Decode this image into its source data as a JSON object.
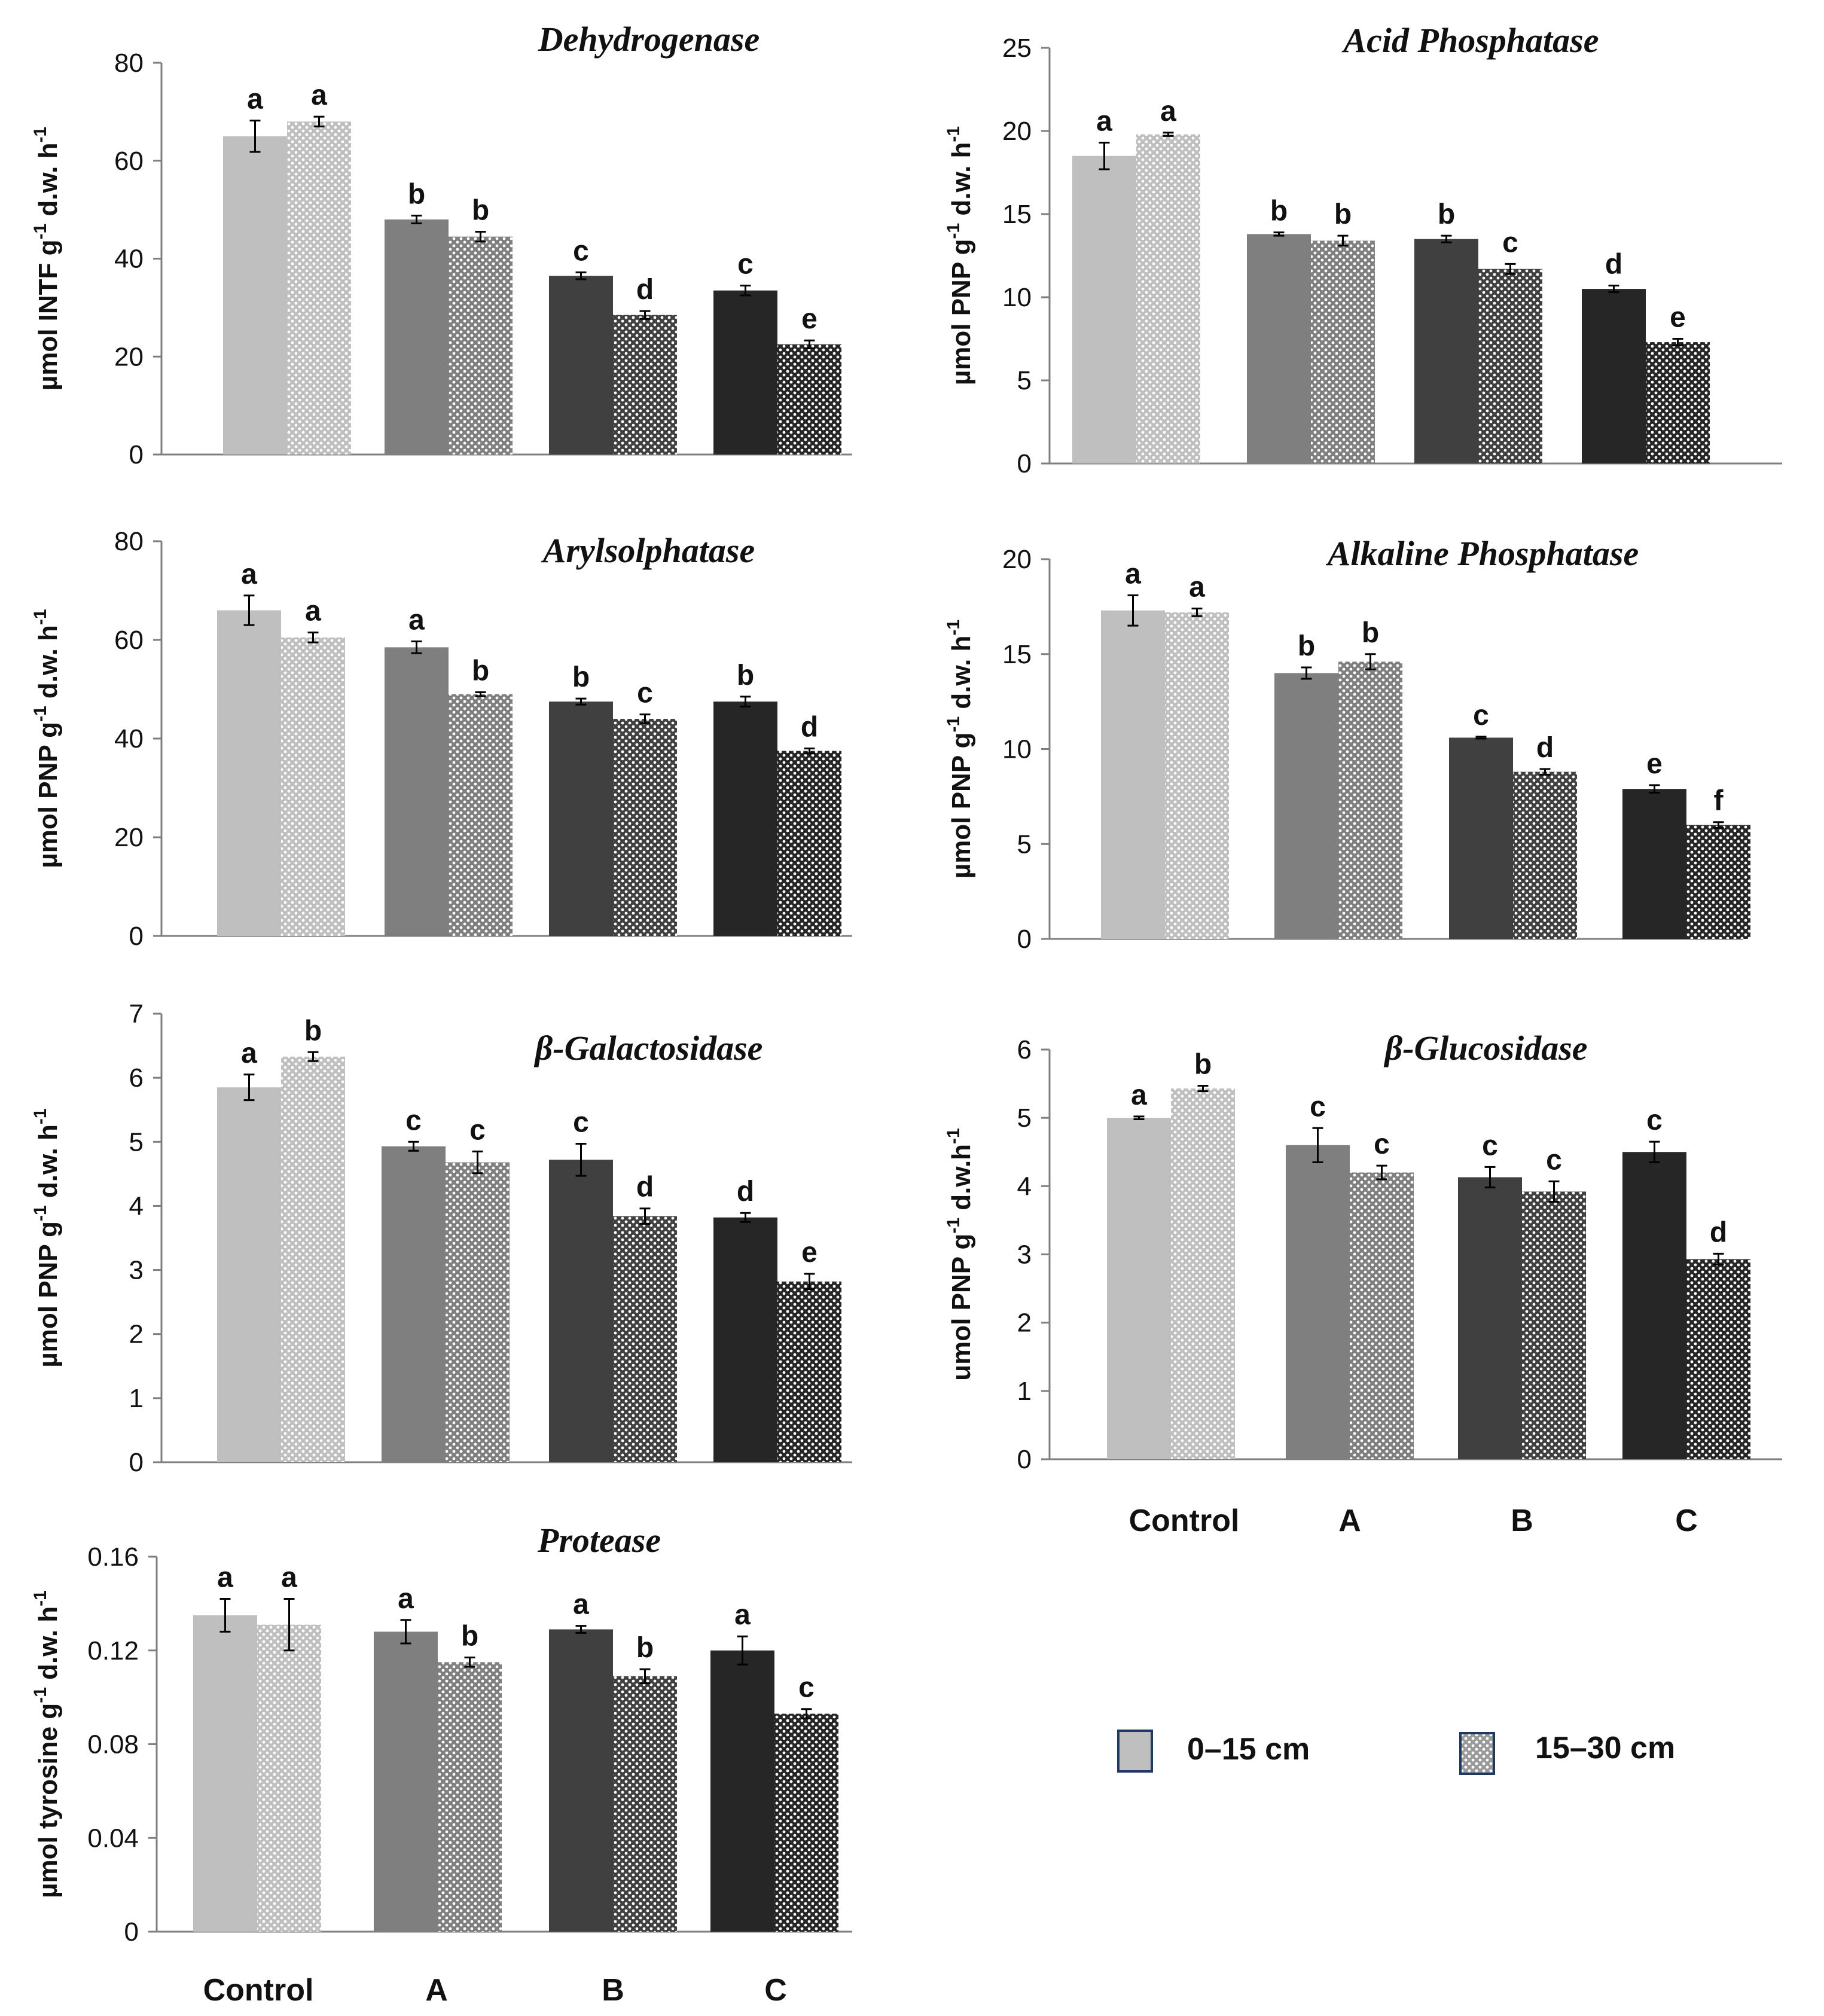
{
  "legend": {
    "items": [
      {
        "label": "0–15 cm",
        "pattern": "solid"
      },
      {
        "label": "15–30 cm",
        "pattern": "dots"
      }
    ]
  },
  "shared_x_labels": {
    "right_column": [
      "Control",
      "A",
      "B",
      "C"
    ],
    "bottom_left": [
      "Control",
      "A",
      "B",
      "C"
    ]
  },
  "colors": {
    "control": "#bfbfbf",
    "A": "#7f7f7f",
    "B": "#404040",
    "C": "#262626",
    "dot": "#ffffff",
    "axis": "#7f7f7f"
  },
  "chart_data": [
    {
      "id": "dehydrogenase",
      "type": "bar",
      "title": "Dehydrogenase",
      "ylabel_main": "µmol INTF g",
      "ylabel_sup1": "-1",
      "ylabel_mid": " d.w. h",
      "ylabel_sup2": "-1",
      "categories": [
        "Control",
        "A",
        "B",
        "C"
      ],
      "ylim": [
        0,
        80
      ],
      "yticks": [
        0,
        20,
        40,
        60,
        80
      ],
      "ytick_labels": [
        "0",
        "20",
        "40",
        "60",
        "80"
      ],
      "series": [
        {
          "name": "0–15 cm",
          "values": [
            65,
            48,
            36.5,
            33.5
          ],
          "errors": [
            3.2,
            0.8,
            0.7,
            1.0
          ],
          "letters": [
            "a",
            "b",
            "c",
            "c"
          ]
        },
        {
          "name": "15–30 cm",
          "values": [
            68,
            44.5,
            28.5,
            22.5
          ],
          "errors": [
            1.0,
            1.0,
            0.8,
            0.8
          ],
          "letters": [
            "a",
            "b",
            "d",
            "e"
          ]
        }
      ]
    },
    {
      "id": "acid-phosphatase",
      "type": "bar",
      "title": "Acid Phosphatase",
      "ylabel_main": "µmol PNP g",
      "ylabel_sup1": "-1",
      "ylabel_mid": " d.w. h",
      "ylabel_sup2": "-1",
      "categories": [
        "Control",
        "A",
        "B",
        "C"
      ],
      "ylim": [
        0,
        25
      ],
      "yticks": [
        0,
        5,
        10,
        15,
        20,
        25
      ],
      "ytick_labels": [
        "0",
        "5",
        "10",
        "15",
        "20",
        "25"
      ],
      "series": [
        {
          "name": "0–15 cm",
          "values": [
            18.5,
            13.8,
            13.5,
            10.5
          ],
          "errors": [
            0.8,
            0.1,
            0.2,
            0.2
          ],
          "letters": [
            "a",
            "b",
            "b",
            "d"
          ]
        },
        {
          "name": "15–30 cm",
          "values": [
            19.8,
            13.4,
            11.7,
            7.3
          ],
          "errors": [
            0.1,
            0.3,
            0.3,
            0.2
          ],
          "letters": [
            "a",
            "b",
            "c",
            "e"
          ]
        }
      ]
    },
    {
      "id": "arylsolphatase",
      "type": "bar",
      "title": "Arylsolphatase",
      "ylabel_main": "µmol PNP g",
      "ylabel_sup1": "-1",
      "ylabel_mid": " d.w. h",
      "ylabel_sup2": "-1",
      "categories": [
        "Control",
        "A",
        "B",
        "C"
      ],
      "ylim": [
        0,
        80
      ],
      "yticks": [
        0,
        20,
        40,
        60,
        80
      ],
      "ytick_labels": [
        "0",
        "20",
        "40",
        "60",
        "80"
      ],
      "series": [
        {
          "name": "0–15 cm",
          "values": [
            66,
            58.5,
            47.5,
            47.5
          ],
          "errors": [
            3.0,
            1.2,
            0.6,
            1.0
          ],
          "letters": [
            "a",
            "a",
            "b",
            "b"
          ]
        },
        {
          "name": "15–30 cm",
          "values": [
            60.5,
            49,
            44,
            37.5
          ],
          "errors": [
            1.0,
            0.4,
            0.9,
            0.5
          ],
          "letters": [
            "a",
            "b",
            "c",
            "d"
          ]
        }
      ]
    },
    {
      "id": "alkaline-phosphatase",
      "type": "bar",
      "title": "Alkaline Phosphatase",
      "ylabel_main": "µmol PNP g",
      "ylabel_sup1": "-1",
      "ylabel_mid": " d.w. h",
      "ylabel_sup2": "-1",
      "categories": [
        "Control",
        "A",
        "B",
        "C"
      ],
      "ylim": [
        0,
        20
      ],
      "yticks": [
        0,
        5,
        10,
        15,
        20
      ],
      "ytick_labels": [
        "0",
        "5",
        "10",
        "15",
        "20"
      ],
      "series": [
        {
          "name": "0–15 cm",
          "values": [
            17.3,
            14,
            10.6,
            7.9
          ],
          "errors": [
            0.8,
            0.3,
            0.05,
            0.2
          ],
          "letters": [
            "a",
            "b",
            "c",
            "e"
          ]
        },
        {
          "name": "15–30 cm",
          "values": [
            17.2,
            14.6,
            8.8,
            6.0
          ],
          "errors": [
            0.2,
            0.4,
            0.15,
            0.15
          ],
          "letters": [
            "a",
            "b",
            "d",
            "f"
          ]
        }
      ]
    },
    {
      "id": "beta-galactosidase",
      "type": "bar",
      "title": "β-Galactosidase",
      "ylabel_main": "µmol PNP g",
      "ylabel_sup1": "-1",
      "ylabel_mid": " d.w. h",
      "ylabel_sup2": "-1",
      "categories": [
        "Control",
        "A",
        "B",
        "C"
      ],
      "ylim": [
        0,
        7
      ],
      "yticks": [
        0,
        1,
        2,
        3,
        4,
        5,
        6,
        7
      ],
      "ytick_labels": [
        "0",
        "1",
        "2",
        "3",
        "4",
        "5",
        "6",
        "7"
      ],
      "series": [
        {
          "name": "0–15 cm",
          "values": [
            5.85,
            4.93,
            4.72,
            3.82
          ],
          "errors": [
            0.2,
            0.07,
            0.25,
            0.07
          ],
          "letters": [
            "a",
            "c",
            "c",
            "d"
          ]
        },
        {
          "name": "15–30 cm",
          "values": [
            6.33,
            4.68,
            3.84,
            2.82
          ],
          "errors": [
            0.07,
            0.17,
            0.12,
            0.12
          ],
          "letters": [
            "b",
            "c",
            "d",
            "e"
          ]
        }
      ]
    },
    {
      "id": "beta-glucosidase",
      "type": "bar",
      "title": "β-Glucosidase",
      "ylabel_main": "umol PNP g",
      "ylabel_sup1": "-1",
      "ylabel_mid": " d.w.h",
      "ylabel_sup2": "-1",
      "categories": [
        "Control",
        "A",
        "B",
        "C"
      ],
      "ylim": [
        0,
        6
      ],
      "yticks": [
        0,
        1,
        2,
        3,
        4,
        5,
        6
      ],
      "ytick_labels": [
        "0",
        "1",
        "2",
        "3",
        "4",
        "5",
        "6"
      ],
      "series": [
        {
          "name": "0–15 cm",
          "values": [
            5.0,
            4.6,
            4.13,
            4.5
          ],
          "errors": [
            0.02,
            0.25,
            0.15,
            0.15
          ],
          "letters": [
            "a",
            "c",
            "c",
            "c"
          ]
        },
        {
          "name": "15–30 cm",
          "values": [
            5.43,
            4.2,
            3.92,
            2.93
          ],
          "errors": [
            0.04,
            0.1,
            0.15,
            0.08
          ],
          "letters": [
            "b",
            "c",
            "c",
            "d"
          ]
        }
      ]
    },
    {
      "id": "protease",
      "type": "bar",
      "title": "Protease",
      "ylabel_main": "µmol tyrosine g",
      "ylabel_sup1": "-1",
      "ylabel_mid": " d.w. h",
      "ylabel_sup2": "-1",
      "categories": [
        "Control",
        "A",
        "B",
        "C"
      ],
      "ylim": [
        0,
        0.16
      ],
      "yticks": [
        0,
        0.04,
        0.08,
        0.12,
        0.16
      ],
      "ytick_labels": [
        "0",
        "0.04",
        "0.08",
        "0.12",
        "0.16"
      ],
      "series": [
        {
          "name": "0–15 cm",
          "values": [
            0.135,
            0.128,
            0.129,
            0.12
          ],
          "errors": [
            0.007,
            0.005,
            0.0015,
            0.006
          ],
          "letters": [
            "a",
            "a",
            "a",
            "a"
          ]
        },
        {
          "name": "15–30 cm",
          "values": [
            0.131,
            0.115,
            0.109,
            0.093
          ],
          "errors": [
            0.011,
            0.002,
            0.003,
            0.002
          ],
          "letters": [
            "a",
            "b",
            "b",
            "c"
          ]
        }
      ]
    }
  ]
}
